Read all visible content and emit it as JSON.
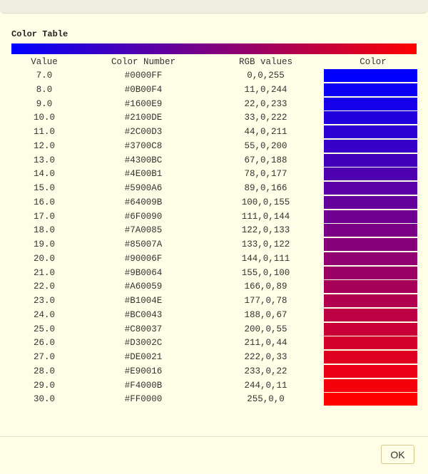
{
  "dialog": {
    "title": "Color Table",
    "ok_label": "OK"
  },
  "gradient": {
    "start": "#0000FF",
    "end": "#FF0000"
  },
  "table": {
    "headers": {
      "value": "Value",
      "color_number": "Color Number",
      "rgb": "RGB values",
      "color": "Color"
    },
    "rows": [
      {
        "value": "7.0",
        "hex": "#0000FF",
        "rgb": "0,0,255"
      },
      {
        "value": "8.0",
        "hex": "#0B00F4",
        "rgb": "11,0,244"
      },
      {
        "value": "9.0",
        "hex": "#1600E9",
        "rgb": "22,0,233"
      },
      {
        "value": "10.0",
        "hex": "#2100DE",
        "rgb": "33,0,222"
      },
      {
        "value": "11.0",
        "hex": "#2C00D3",
        "rgb": "44,0,211"
      },
      {
        "value": "12.0",
        "hex": "#3700C8",
        "rgb": "55,0,200"
      },
      {
        "value": "13.0",
        "hex": "#4300BC",
        "rgb": "67,0,188"
      },
      {
        "value": "14.0",
        "hex": "#4E00B1",
        "rgb": "78,0,177"
      },
      {
        "value": "15.0",
        "hex": "#5900A6",
        "rgb": "89,0,166"
      },
      {
        "value": "16.0",
        "hex": "#64009B",
        "rgb": "100,0,155"
      },
      {
        "value": "17.0",
        "hex": "#6F0090",
        "rgb": "111,0,144"
      },
      {
        "value": "18.0",
        "hex": "#7A0085",
        "rgb": "122,0,133"
      },
      {
        "value": "19.0",
        "hex": "#85007A",
        "rgb": "133,0,122"
      },
      {
        "value": "20.0",
        "hex": "#90006F",
        "rgb": "144,0,111"
      },
      {
        "value": "21.0",
        "hex": "#9B0064",
        "rgb": "155,0,100"
      },
      {
        "value": "22.0",
        "hex": "#A60059",
        "rgb": "166,0,89"
      },
      {
        "value": "23.0",
        "hex": "#B1004E",
        "rgb": "177,0,78"
      },
      {
        "value": "24.0",
        "hex": "#BC0043",
        "rgb": "188,0,67"
      },
      {
        "value": "25.0",
        "hex": "#C80037",
        "rgb": "200,0,55"
      },
      {
        "value": "26.0",
        "hex": "#D3002C",
        "rgb": "211,0,44"
      },
      {
        "value": "27.0",
        "hex": "#DE0021",
        "rgb": "222,0,33"
      },
      {
        "value": "28.0",
        "hex": "#E90016",
        "rgb": "233,0,22"
      },
      {
        "value": "29.0",
        "hex": "#F4000B",
        "rgb": "244,0,11"
      },
      {
        "value": "30.0",
        "hex": "#FF0000",
        "rgb": "255,0,0"
      }
    ]
  }
}
